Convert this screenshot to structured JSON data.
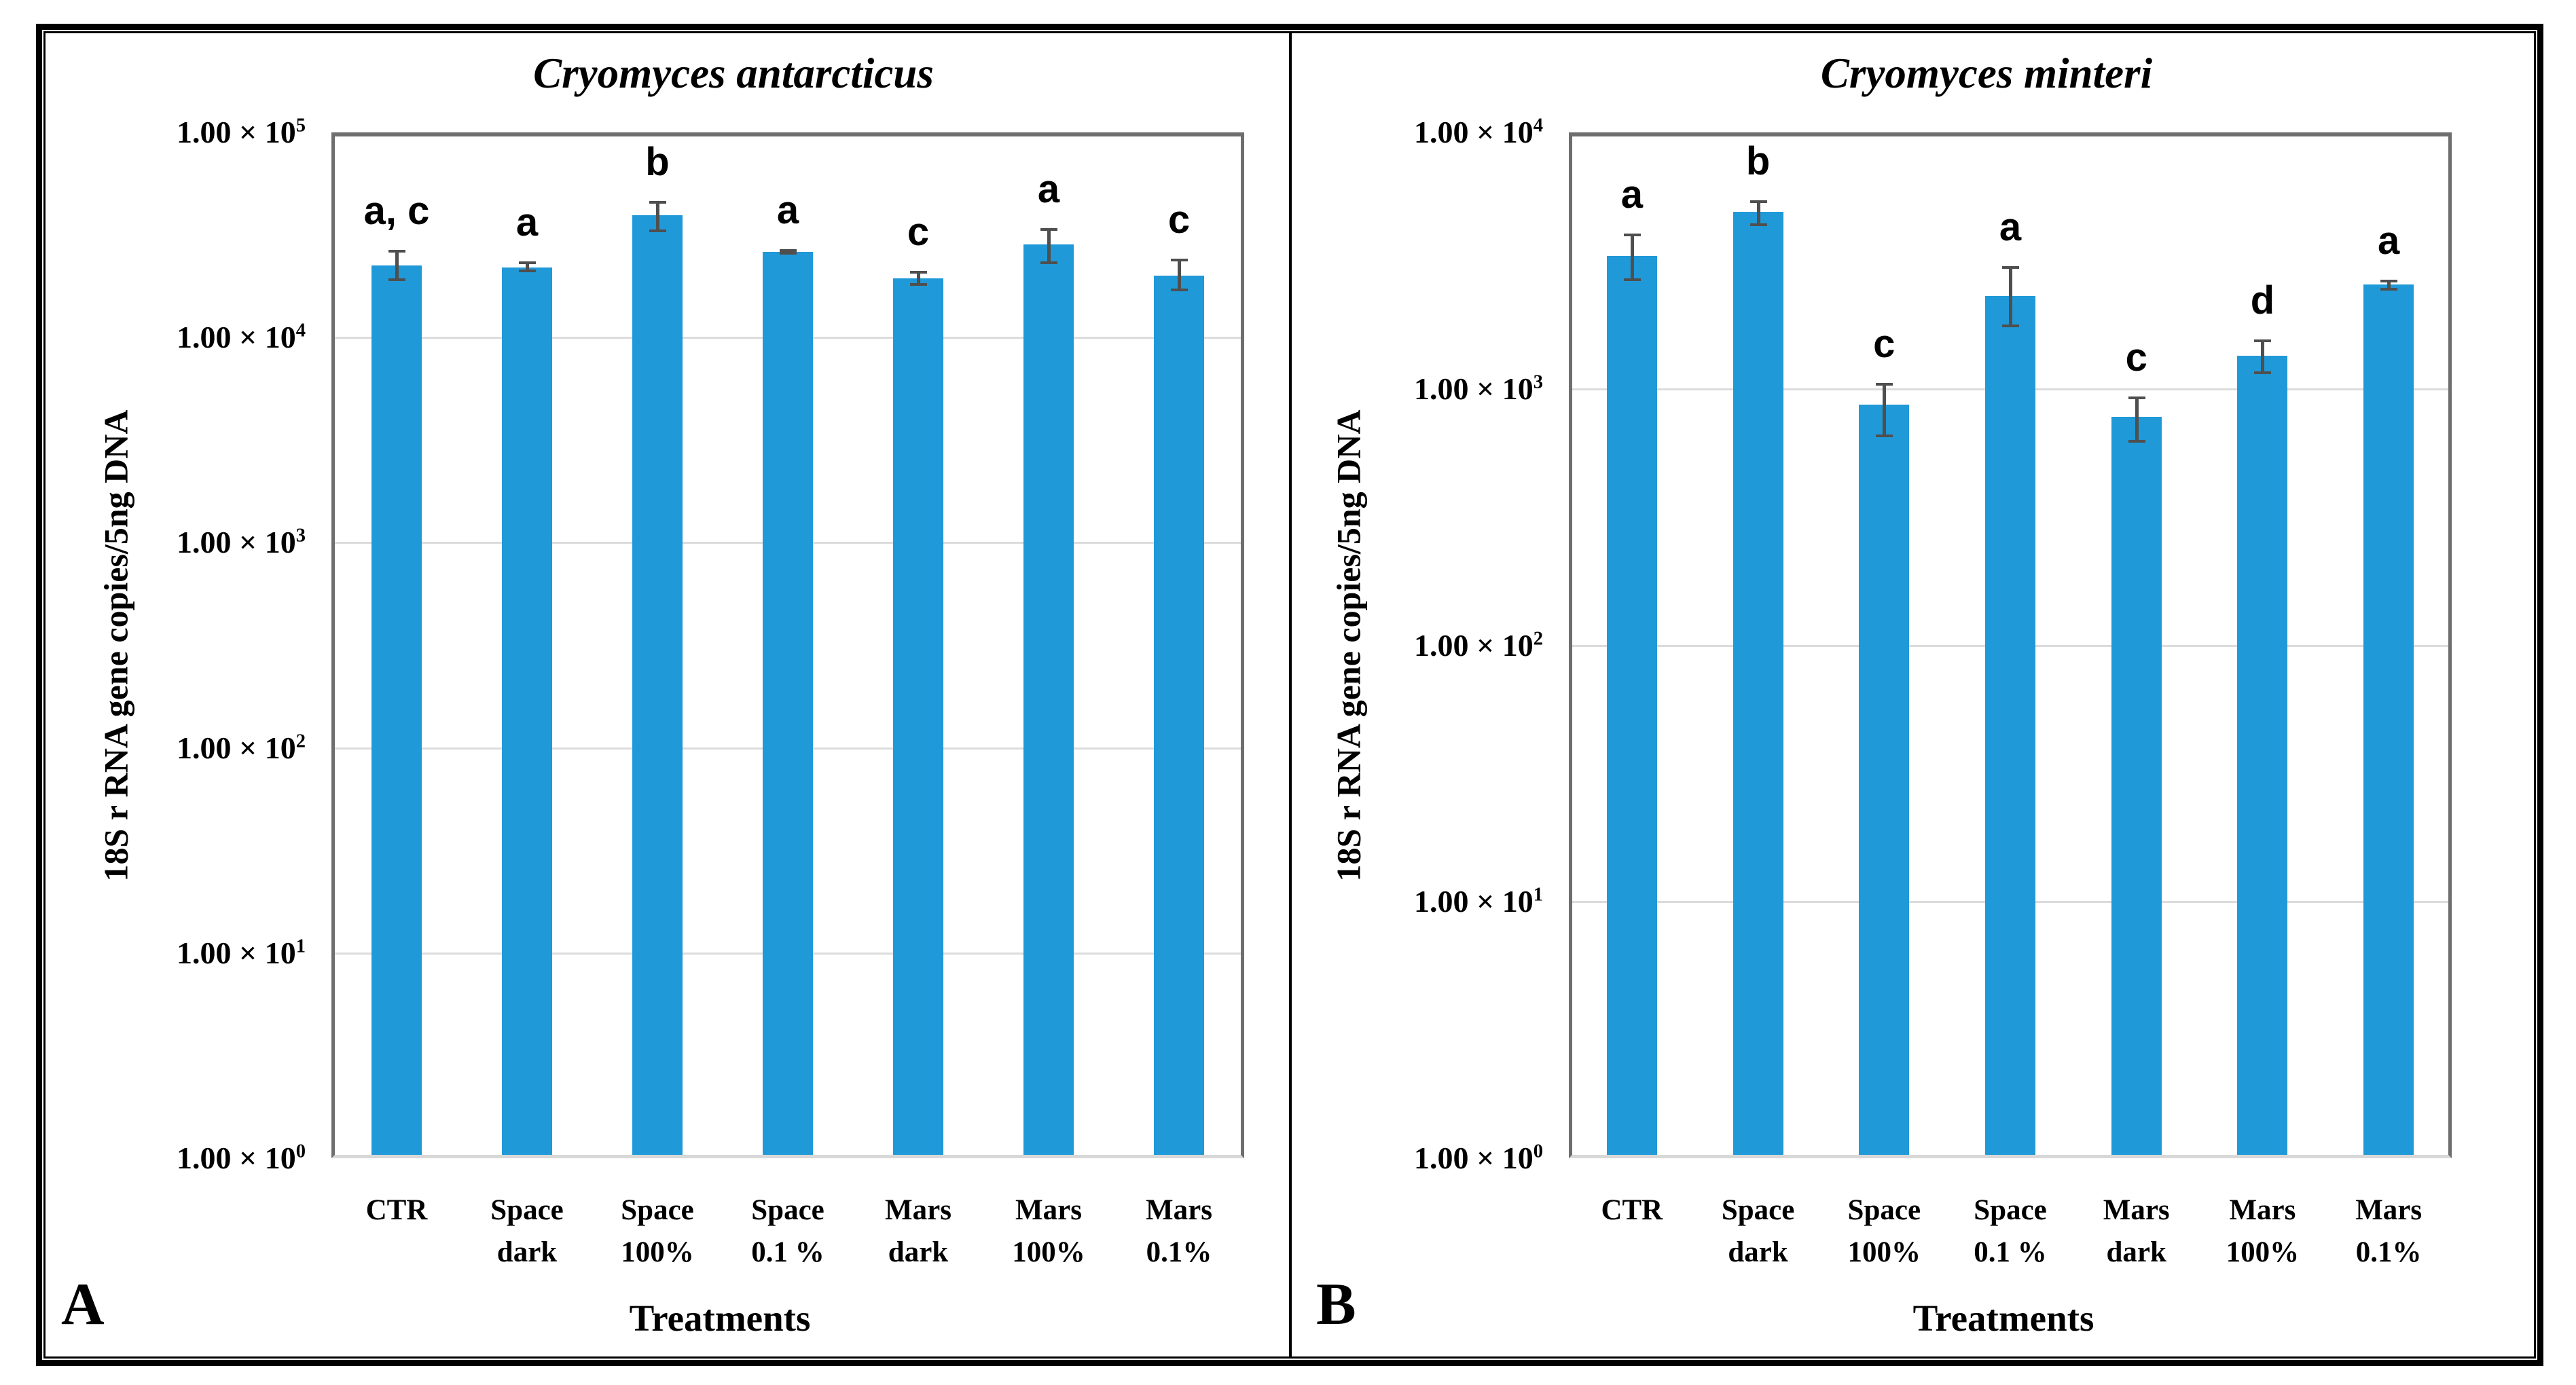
{
  "figure": {
    "panel_letters": [
      "A",
      "B"
    ]
  },
  "colors": {
    "bar": "#2099D8",
    "error_bar": "#4F4F4F",
    "gridline": "#DCDCDC",
    "plot_border": "#6E6E6E",
    "plot_border_bottom": "#D8D8D8",
    "frame": "#000000",
    "text": "#000000"
  },
  "chart_data": [
    {
      "type": "bar",
      "panel_letter": "A",
      "title": "Cryomyces antarcticus",
      "xlabel": "Treatments",
      "ylabel": "18S r RNA gene copies/5ng DNA",
      "yscale": "log",
      "ylim": [
        1,
        100000
      ],
      "grid": true,
      "legend": null,
      "ytick_labels": [
        {
          "text": "1.00 × 10",
          "sup": "5"
        },
        {
          "text": "1.00 × 10",
          "sup": "4"
        },
        {
          "text": "1.00 × 10",
          "sup": "3"
        },
        {
          "text": "1.00 × 10",
          "sup": "2"
        },
        {
          "text": "1.00 × 10",
          "sup": "1"
        },
        {
          "text": "1.00 × 10",
          "sup": "0"
        }
      ],
      "categories_line1": [
        "CTR",
        "Space",
        "Space",
        "Space",
        "Mars",
        "Mars",
        "Mars"
      ],
      "categories_line2": [
        "",
        "dark",
        "100%",
        "0.1 %",
        "dark",
        "100%",
        "0.1%"
      ],
      "values": [
        22500,
        22000,
        39500,
        26200,
        19500,
        28500,
        20000
      ],
      "error_upper": [
        26500,
        23300,
        46000,
        26800,
        21000,
        34000,
        24000
      ],
      "error_lower": [
        19000,
        20900,
        33000,
        25500,
        18000,
        23000,
        17000
      ],
      "significance_letters": [
        "a, c",
        "a",
        "b",
        "a",
        "c",
        "a",
        "c"
      ]
    },
    {
      "type": "bar",
      "panel_letter": "B",
      "title": "Cryomyces minteri",
      "xlabel": "Treatments",
      "ylabel": "18S r RNA gene copies/5ng DNA",
      "yscale": "log",
      "ylim": [
        1,
        10000
      ],
      "grid": true,
      "legend": null,
      "ytick_labels": [
        {
          "text": "1.00 × 10",
          "sup": "4"
        },
        {
          "text": "1.00 × 10",
          "sup": "3"
        },
        {
          "text": "1.00 × 10",
          "sup": "2"
        },
        {
          "text": "1.00 × 10",
          "sup": "1"
        },
        {
          "text": "1.00 × 10",
          "sup": "0"
        }
      ],
      "categories_line1": [
        "CTR",
        "Space",
        "Space",
        "Space",
        "Mars",
        "Mars",
        "Mars"
      ],
      "categories_line2": [
        "",
        "dark",
        "100%",
        "0.1 %",
        "dark",
        "100%",
        "0.1%"
      ],
      "values": [
        3300,
        4900,
        870,
        2300,
        780,
        1350,
        2550
      ],
      "error_upper": [
        4000,
        5400,
        1050,
        3000,
        930,
        1550,
        2650
      ],
      "error_lower": [
        2650,
        4350,
        650,
        1750,
        620,
        1150,
        2430
      ],
      "significance_letters": [
        "a",
        "b",
        "c",
        "a",
        "c",
        "d",
        "a"
      ]
    }
  ]
}
